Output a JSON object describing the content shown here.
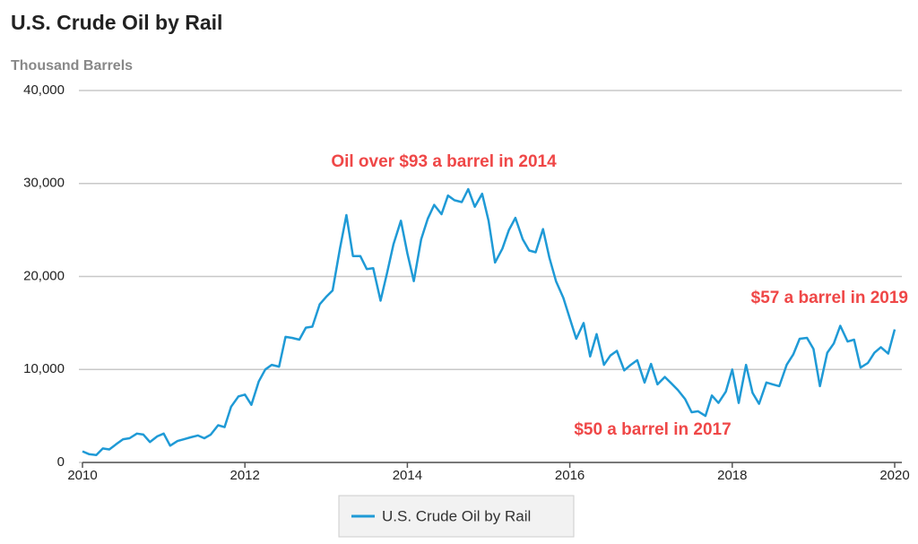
{
  "chart_data": {
    "type": "line",
    "title": "U.S. Crude Oil by Rail",
    "subtitle": "Thousand Barrels",
    "annotations": [
      "Oil over $93 a barrel in 2014",
      "$57 a barrel in 2019",
      "$50 a barrel in 2017"
    ],
    "annotation_color": "#ef4747",
    "xlim": [
      2010,
      2020
    ],
    "xticks": [
      2010,
      2012,
      2014,
      2016,
      2018,
      2020
    ],
    "ylim": [
      0,
      40000
    ],
    "yticks": [
      0,
      {
        "value": 10000,
        "label": "10,000"
      },
      {
        "value": 20000,
        "label": "20,000"
      },
      {
        "value": 30000,
        "label": "30,000"
      },
      {
        "value": 40000,
        "label": "40,000"
      }
    ],
    "grid": true,
    "x": [
      2010,
      2010.08,
      2010.17,
      2010.25,
      2010.33,
      2010.42,
      2010.5,
      2010.58,
      2010.67,
      2010.75,
      2010.83,
      2010.92,
      2011,
      2011.08,
      2011.17,
      2011.25,
      2011.33,
      2011.42,
      2011.5,
      2011.58,
      2011.67,
      2011.75,
      2011.83,
      2011.92,
      2012,
      2012.08,
      2012.17,
      2012.25,
      2012.33,
      2012.42,
      2012.5,
      2012.58,
      2012.67,
      2012.75,
      2012.83,
      2012.92,
      2013,
      2013.08,
      2013.17,
      2013.25,
      2013.33,
      2013.42,
      2013.5,
      2013.58,
      2013.67,
      2013.75,
      2013.83,
      2013.92,
      2014,
      2014.08,
      2014.17,
      2014.25,
      2014.33,
      2014.42,
      2014.5,
      2014.58,
      2014.67,
      2014.75,
      2014.83,
      2014.92,
      2015,
      2015.08,
      2015.17,
      2015.25,
      2015.33,
      2015.42,
      2015.5,
      2015.58,
      2015.67,
      2015.75,
      2015.83,
      2015.92,
      2016,
      2016.08,
      2016.17,
      2016.25,
      2016.33,
      2016.42,
      2016.5,
      2016.58,
      2016.67,
      2016.75,
      2016.83,
      2016.92,
      2017,
      2017.08,
      2017.17,
      2017.25,
      2017.33,
      2017.42,
      2017.5,
      2017.58,
      2017.67,
      2017.75,
      2017.83,
      2017.92,
      2018,
      2018.08,
      2018.17,
      2018.25,
      2018.33,
      2018.42,
      2018.5,
      2018.58,
      2018.67,
      2018.75,
      2018.83,
      2018.92,
      2019,
      2019.08,
      2019.17,
      2019.25,
      2019.33,
      2019.42,
      2019.5,
      2019.58,
      2019.67,
      2019.75,
      2019.83,
      2019.92,
      2020
    ],
    "series": [
      {
        "name": "U.S. Crude Oil by Rail",
        "color": "#1f9ad6",
        "values": [
          1200,
          900,
          800,
          1500,
          1400,
          2000,
          2500,
          2600,
          3100,
          3000,
          2200,
          2800,
          3100,
          1800,
          2300,
          2500,
          2700,
          2900,
          2600,
          3000,
          4000,
          3800,
          6000,
          7100,
          7300,
          6200,
          8700,
          10000,
          10500,
          10300,
          13500,
          13400,
          13200,
          14500,
          14600,
          17000,
          17800,
          18500,
          23000,
          26600,
          22200,
          22200,
          20800,
          20900,
          17400,
          20400,
          23500,
          26000,
          22500,
          19500,
          24000,
          26200,
          27700,
          26700,
          28700,
          28200,
          28000,
          29400,
          27500,
          28900,
          26000,
          21500,
          23000,
          25000,
          26300,
          24000,
          22800,
          22600,
          25100,
          22000,
          19500,
          17700,
          15500,
          13300,
          15000,
          11400,
          13800,
          10500,
          11500,
          12000,
          9900,
          10500,
          11000,
          8600,
          10600,
          8400,
          9200,
          8500,
          7800,
          6800,
          5400,
          5500,
          5000,
          7200,
          6400,
          7600,
          10000,
          6400,
          10500,
          7500,
          6300,
          8600,
          8400,
          8200,
          10500,
          11600,
          13300,
          13400,
          12200,
          8200,
          11800,
          12800,
          14700,
          13000,
          13200,
          10200,
          10700,
          11800,
          12400,
          11700,
          14300
        ]
      }
    ]
  }
}
